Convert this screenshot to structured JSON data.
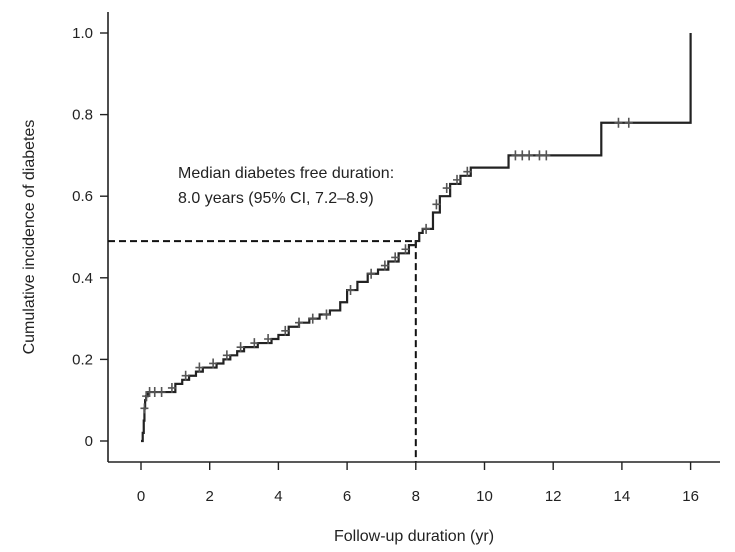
{
  "chart_data": {
    "type": "line",
    "subtype": "kaplan-meier-cumulative-incidence",
    "xlabel": "Follow-up duration (yr)",
    "ylabel": "Cumulative incidence of diabetes",
    "xlim": [
      -1,
      17
    ],
    "ylim": [
      -0.05,
      1.05
    ],
    "xticks": [
      0,
      2,
      4,
      6,
      8,
      10,
      12,
      14,
      16
    ],
    "yticks": [
      0,
      0.2,
      0.4,
      0.6,
      0.8,
      1.0
    ],
    "ytick_labels": [
      "0",
      "0.2",
      "0.4",
      "0.6",
      "0.8",
      "1.0"
    ],
    "grid": false,
    "legend": "none",
    "line_color": "#222222",
    "censor_color": "#555555",
    "annotation": {
      "line1": "Median diabetes free duration:",
      "line2": "8.0 years (95% CI, 7.2–8.9)"
    },
    "median_reference": {
      "x": 8.0,
      "y": 0.49
    },
    "series": [
      {
        "x": [
          0,
          0.05,
          0.08,
          0.1,
          0.12,
          0.15,
          0.2,
          0.3,
          0.5,
          0.8,
          1.0,
          1.2,
          1.4,
          1.6,
          1.8,
          2.0,
          2.2,
          2.4,
          2.6,
          2.8,
          3.0,
          3.2,
          3.4,
          3.6,
          3.8,
          4.0,
          4.3,
          4.6,
          4.9,
          5.2,
          5.5,
          5.8,
          6.0,
          6.3,
          6.6,
          6.9,
          7.2,
          7.5,
          7.8,
          8.0,
          8.1,
          8.2,
          8.5,
          8.7,
          9.0,
          9.3,
          9.6,
          10.6,
          10.7,
          11.5,
          12.0,
          13.3,
          13.4,
          14.0,
          15.0,
          16.0,
          16.0
        ],
        "y": [
          0.0,
          0.02,
          0.05,
          0.08,
          0.1,
          0.11,
          0.12,
          0.12,
          0.12,
          0.12,
          0.14,
          0.15,
          0.16,
          0.17,
          0.18,
          0.18,
          0.19,
          0.2,
          0.21,
          0.22,
          0.23,
          0.23,
          0.24,
          0.24,
          0.25,
          0.26,
          0.28,
          0.29,
          0.3,
          0.31,
          0.32,
          0.34,
          0.37,
          0.39,
          0.41,
          0.42,
          0.44,
          0.46,
          0.48,
          0.49,
          0.51,
          0.52,
          0.56,
          0.6,
          0.63,
          0.65,
          0.67,
          0.67,
          0.7,
          0.7,
          0.7,
          0.7,
          0.78,
          0.78,
          0.78,
          0.78,
          1.0
        ]
      }
    ],
    "censor_marks": {
      "x": [
        0.1,
        0.15,
        0.25,
        0.4,
        0.6,
        0.9,
        1.3,
        1.7,
        2.1,
        2.5,
        2.9,
        3.3,
        3.7,
        4.2,
        4.6,
        5.0,
        5.4,
        6.1,
        6.7,
        7.1,
        7.4,
        7.7,
        8.3,
        8.6,
        8.9,
        9.2,
        9.5,
        10.9,
        11.1,
        11.3,
        11.6,
        11.8,
        13.9,
        14.2
      ],
      "y": [
        0.08,
        0.11,
        0.12,
        0.12,
        0.12,
        0.13,
        0.16,
        0.18,
        0.19,
        0.21,
        0.23,
        0.24,
        0.25,
        0.27,
        0.29,
        0.3,
        0.31,
        0.37,
        0.41,
        0.43,
        0.45,
        0.47,
        0.52,
        0.58,
        0.62,
        0.64,
        0.66,
        0.7,
        0.7,
        0.7,
        0.7,
        0.7,
        0.78,
        0.78
      ]
    }
  }
}
